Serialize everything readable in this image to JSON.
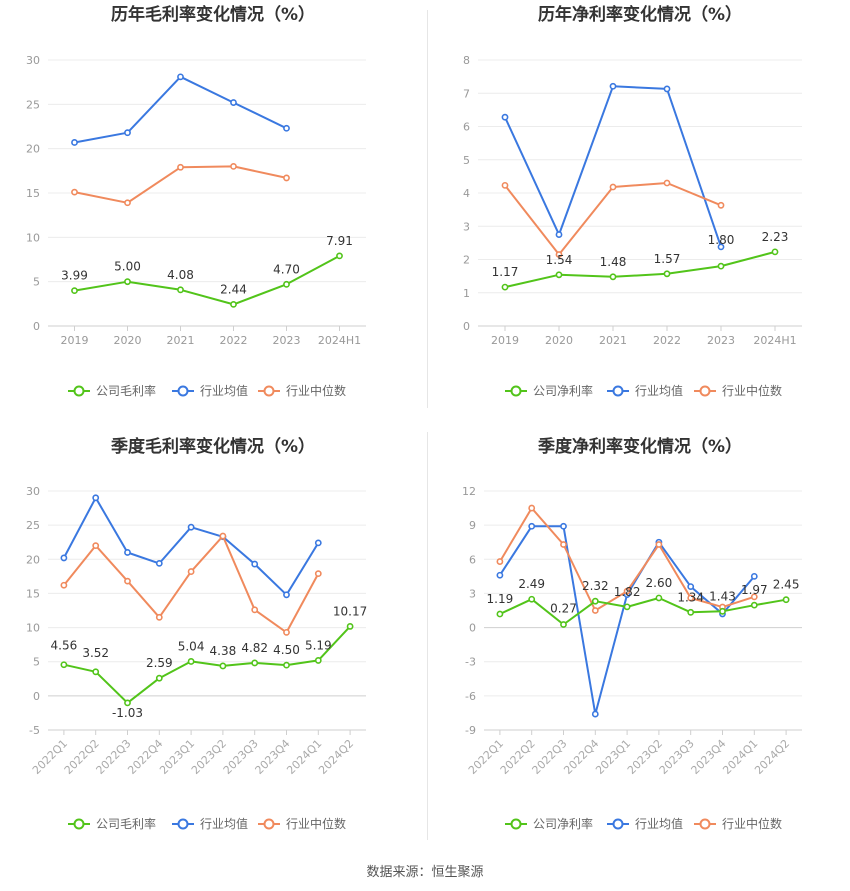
{
  "footer": {
    "source": "数据来源：恒生聚源"
  },
  "chart_data": [
    {
      "type": "line",
      "title": "历年毛利率变化情况（%）",
      "categories": [
        "2019",
        "2020",
        "2021",
        "2022",
        "2023",
        "2024H1"
      ],
      "ylim": [
        0,
        30
      ],
      "yticks": [
        0,
        5,
        10,
        15,
        20,
        25,
        30
      ],
      "grid": true,
      "legend_position": "bottom",
      "series": [
        {
          "name": "公司毛利率",
          "color": "#52c41a",
          "labels": true,
          "values": [
            3.99,
            5.0,
            4.08,
            2.44,
            4.7,
            7.91
          ],
          "value_labels": [
            "3.99",
            "5.00",
            "4.08",
            "2.44",
            "4.70",
            "7.91"
          ]
        },
        {
          "name": "行业均值",
          "color": "#3a78e0",
          "labels": false,
          "values": [
            20.7,
            21.8,
            28.1,
            25.2,
            22.3,
            null
          ]
        },
        {
          "name": "行业中位数",
          "color": "#f08a5d",
          "labels": false,
          "values": [
            15.1,
            13.9,
            17.9,
            18.0,
            16.7,
            null
          ]
        }
      ]
    },
    {
      "type": "line",
      "title": "历年净利率变化情况（%）",
      "categories": [
        "2019",
        "2020",
        "2021",
        "2022",
        "2023",
        "2024H1"
      ],
      "ylim": [
        0,
        8
      ],
      "yticks": [
        0,
        1,
        2,
        3,
        4,
        5,
        6,
        7,
        8
      ],
      "grid": true,
      "legend_position": "bottom",
      "series": [
        {
          "name": "公司净利率",
          "color": "#52c41a",
          "labels": true,
          "values": [
            1.17,
            1.54,
            1.48,
            1.57,
            1.8,
            2.23
          ],
          "value_labels": [
            "1.17",
            "1.54",
            "1.48",
            "1.57",
            "1.80",
            "2.23"
          ]
        },
        {
          "name": "行业均值",
          "color": "#3a78e0",
          "labels": false,
          "values": [
            6.28,
            2.75,
            7.21,
            7.13,
            2.38,
            null
          ]
        },
        {
          "name": "行业中位数",
          "color": "#f08a5d",
          "labels": false,
          "values": [
            4.23,
            2.15,
            4.18,
            4.3,
            3.63,
            null
          ]
        }
      ]
    },
    {
      "type": "line",
      "title": "季度毛利率变化情况（%）",
      "categories": [
        "2022Q1",
        "2022Q2",
        "2022Q3",
        "2022Q4",
        "2023Q1",
        "2023Q2",
        "2023Q3",
        "2023Q4",
        "2024Q1",
        "2024Q2"
      ],
      "ylim": [
        -5,
        30
      ],
      "yticks": [
        -5,
        0,
        5,
        10,
        15,
        20,
        25,
        30
      ],
      "grid": true,
      "legend_position": "bottom",
      "series": [
        {
          "name": "公司毛利率",
          "color": "#52c41a",
          "labels": true,
          "values": [
            4.56,
            3.52,
            -1.03,
            2.59,
            5.04,
            4.38,
            4.82,
            4.5,
            5.19,
            10.17
          ],
          "value_labels": [
            "4.56",
            "3.52",
            "-1.03",
            "2.59",
            "5.04",
            "4.38",
            "4.82",
            "4.50",
            "5.19",
            "10.17"
          ]
        },
        {
          "name": "行业均值",
          "color": "#3a78e0",
          "labels": false,
          "values": [
            20.2,
            29.0,
            21.0,
            19.4,
            24.7,
            23.3,
            19.3,
            14.8,
            22.4,
            null
          ]
        },
        {
          "name": "行业中位数",
          "color": "#f08a5d",
          "labels": false,
          "values": [
            16.2,
            22.0,
            16.8,
            11.5,
            18.2,
            23.4,
            12.6,
            9.3,
            17.9,
            null
          ]
        }
      ]
    },
    {
      "type": "line",
      "title": "季度净利率变化情况（%）",
      "categories": [
        "2022Q1",
        "2022Q2",
        "2022Q3",
        "2022Q4",
        "2023Q1",
        "2023Q2",
        "2023Q3",
        "2023Q4",
        "2024Q1",
        "2024Q2"
      ],
      "ylim": [
        -9,
        12
      ],
      "yticks": [
        -9,
        -6,
        -3,
        0,
        3,
        6,
        9,
        12
      ],
      "grid": true,
      "legend_position": "bottom",
      "series": [
        {
          "name": "公司净利率",
          "color": "#52c41a",
          "labels": true,
          "values": [
            1.19,
            2.49,
            0.27,
            2.32,
            1.82,
            2.6,
            1.34,
            1.43,
            1.97,
            2.45
          ],
          "value_labels": [
            "1.19",
            "2.49",
            "0.27",
            "2.32",
            "1.82",
            "2.60",
            "1.34",
            "1.43",
            "1.97",
            "2.45"
          ]
        },
        {
          "name": "行业均值",
          "color": "#3a78e0",
          "labels": false,
          "values": [
            4.6,
            8.9,
            8.9,
            -7.6,
            2.9,
            7.5,
            3.6,
            1.2,
            4.5,
            null
          ]
        },
        {
          "name": "行业中位数",
          "color": "#f08a5d",
          "labels": false,
          "values": [
            5.8,
            10.5,
            7.3,
            1.5,
            3.2,
            7.3,
            2.6,
            1.8,
            2.7,
            null
          ]
        }
      ]
    }
  ]
}
